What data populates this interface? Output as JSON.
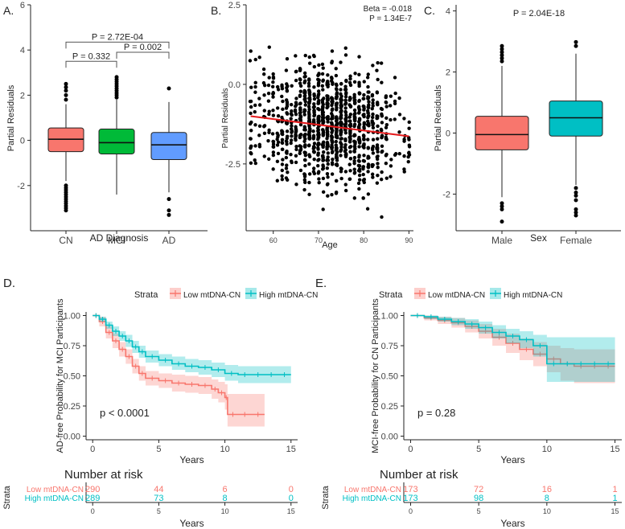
{
  "colors": {
    "red": "#f8766d",
    "green": "#00ba38",
    "blue": "#619cff",
    "teal": "#00bfc4",
    "line": "#e41a1c",
    "axis": "#222222",
    "tick": "#444444"
  },
  "chart_data": [
    {
      "panel_label": "A.",
      "type": "box",
      "xlabel": "AD Diagnosis",
      "ylabel": "Partial Residuals",
      "ylim": [
        -4,
        6
      ],
      "yticks": [
        "-2",
        "0",
        "2",
        "4",
        "6"
      ],
      "categories": [
        "CN",
        "MCI",
        "AD"
      ],
      "boxes": [
        {
          "name": "CN",
          "q1": -0.5,
          "median": 0.05,
          "q3": 0.55,
          "whisker_low": -1.8,
          "whisker_high": 1.6,
          "outliers": [
            -2.0,
            -2.1,
            -2.2,
            -2.3,
            -2.4,
            -2.5,
            -2.6,
            -2.7,
            -2.8,
            -2.9,
            -3.0,
            -3.1,
            1.8,
            2.0,
            2.2,
            2.35,
            2.5
          ],
          "color_key": "red"
        },
        {
          "name": "MCI",
          "q1": -0.6,
          "median": -0.1,
          "q3": 0.5,
          "whisker_low": -2.4,
          "whisker_high": 1.8,
          "outliers": [
            1.9,
            2.0,
            2.1,
            2.2,
            2.3,
            2.4,
            2.5,
            2.6,
            2.7,
            2.8
          ],
          "color_key": "green"
        },
        {
          "name": "AD",
          "q1": -0.85,
          "median": -0.2,
          "q3": 0.35,
          "whisker_low": -2.3,
          "whisker_high": 1.7,
          "outliers": [
            2.3,
            -2.6,
            -3.1,
            -3.3
          ],
          "color_key": "blue"
        }
      ],
      "brackets": [
        {
          "from": "CN",
          "to": "AD",
          "label": "P = 2.72E-04",
          "y": 4.35
        },
        {
          "from": "CN",
          "to": "MCI",
          "label": "P = 0.332",
          "y": 3.5
        },
        {
          "from": "MCI",
          "to": "AD",
          "label": "P = 0.002",
          "y": 3.9
        }
      ]
    },
    {
      "panel_label": "B.",
      "type": "scatter",
      "xlabel": "Age",
      "ylabel": "Partial Residuals",
      "xlim": [
        54,
        91
      ],
      "ylim": [
        -4.6,
        2.5
      ],
      "xticks": [
        "60",
        "70",
        "80",
        "90"
      ],
      "yticks": [
        "2.5",
        "0.0",
        "-2.5"
      ],
      "annotation_beta": "Beta = -0.018",
      "annotation_p": "P = 1.34E-7",
      "n_points": 1100,
      "x_range": [
        55,
        90
      ],
      "y_mean": -1.3,
      "y_sd": 0.95,
      "fit_line": {
        "x": [
          55,
          90
        ],
        "y": [
          -1.0,
          -1.63
        ]
      }
    },
    {
      "panel_label": "C.",
      "type": "box",
      "xlabel": "Sex",
      "ylabel": "Partial Residuals",
      "ylim": [
        -3.2,
        4.2
      ],
      "yticks": [
        "-2",
        "0",
        "2",
        "4"
      ],
      "categories": [
        "Male",
        "Female"
      ],
      "annotation": "P = 2.04E-18",
      "boxes": [
        {
          "name": "Male",
          "q1": -0.55,
          "median": -0.05,
          "q3": 0.55,
          "whisker_low": -2.1,
          "whisker_high": 2.2,
          "outliers": [
            2.35,
            2.45,
            2.55,
            2.65,
            2.75,
            2.85,
            -2.3,
            -2.4,
            -2.5,
            -2.9
          ],
          "color_key": "red"
        },
        {
          "name": "Female",
          "q1": -0.1,
          "median": 0.5,
          "q3": 1.05,
          "whisker_low": -1.7,
          "whisker_high": 2.6,
          "outliers": [
            2.85,
            2.98,
            -1.8,
            -1.95,
            -2.05,
            -2.2,
            -2.5,
            -2.6,
            -2.7
          ],
          "color_key": "teal"
        }
      ]
    },
    {
      "panel_label": "D.",
      "type": "line",
      "legend_title": "Strata",
      "legend_items": [
        "Low mtDNA-CN",
        "High mtDNA-CN"
      ],
      "ylabel": "AD-free Probability for MCI Participants",
      "xlabel": "Years",
      "xlim": [
        -0.5,
        15.5
      ],
      "ylim": [
        -0.03,
        1.03
      ],
      "xticks": [
        "0",
        "5",
        "10",
        "15"
      ],
      "yticks": [
        "0.00",
        "0.25",
        "0.50",
        "0.75",
        "1.00"
      ],
      "pvalue": "p < 0.0001",
      "series": [
        {
          "name": "Low mtDNA-CN",
          "color_key": "red",
          "x": [
            0,
            0.5,
            1,
            1.5,
            2,
            2.5,
            3,
            3.5,
            4,
            5,
            6,
            7,
            8,
            9,
            9.5,
            10,
            10.2,
            11,
            12,
            13
          ],
          "y": [
            1.0,
            0.95,
            0.86,
            0.79,
            0.72,
            0.66,
            0.58,
            0.52,
            0.48,
            0.46,
            0.44,
            0.43,
            0.42,
            0.39,
            0.36,
            0.32,
            0.18,
            0.18,
            0.18,
            0.18
          ],
          "lower": [
            1.0,
            0.91,
            0.81,
            0.73,
            0.66,
            0.6,
            0.52,
            0.46,
            0.42,
            0.4,
            0.37,
            0.36,
            0.35,
            0.31,
            0.28,
            0.22,
            0.08,
            0.08,
            0.08,
            0.08
          ],
          "upper": [
            1.0,
            0.99,
            0.91,
            0.85,
            0.78,
            0.72,
            0.64,
            0.58,
            0.54,
            0.52,
            0.51,
            0.5,
            0.49,
            0.47,
            0.45,
            0.43,
            0.35,
            0.35,
            0.35,
            0.35
          ]
        },
        {
          "name": "High mtDNA-CN",
          "color_key": "teal",
          "x": [
            0,
            0.5,
            1,
            1.5,
            2,
            2.5,
            3,
            3.5,
            4,
            5,
            6,
            7,
            8,
            9,
            10,
            11,
            12,
            13,
            14,
            15
          ],
          "y": [
            1.0,
            0.97,
            0.92,
            0.87,
            0.83,
            0.79,
            0.74,
            0.7,
            0.66,
            0.63,
            0.6,
            0.58,
            0.57,
            0.55,
            0.52,
            0.51,
            0.51,
            0.51,
            0.51,
            0.51
          ],
          "lower": [
            1.0,
            0.95,
            0.89,
            0.83,
            0.79,
            0.74,
            0.69,
            0.65,
            0.61,
            0.58,
            0.55,
            0.53,
            0.51,
            0.49,
            0.46,
            0.44,
            0.44,
            0.44,
            0.44,
            0.44
          ],
          "upper": [
            1.0,
            0.99,
            0.95,
            0.91,
            0.87,
            0.84,
            0.79,
            0.75,
            0.71,
            0.68,
            0.66,
            0.64,
            0.63,
            0.61,
            0.59,
            0.58,
            0.58,
            0.58,
            0.58,
            0.58
          ]
        }
      ],
      "risk_table": {
        "title": "Number at risk",
        "ylabel": "Strata",
        "xlabel": "Years",
        "rows": [
          {
            "name": "Low mtDNA-CN",
            "color_key": "red",
            "values": [
              "290",
              "44",
              "6",
              "0"
            ]
          },
          {
            "name": "High mtDNA-CN",
            "color_key": "teal",
            "values": [
              "289",
              "73",
              "8",
              "0"
            ]
          }
        ]
      }
    },
    {
      "panel_label": "E.",
      "type": "line",
      "legend_title": "Strata",
      "legend_items": [
        "Low mtDNA-CN",
        "High mtDNA-CN"
      ],
      "ylabel": "MCI-free Probability for CN Participants",
      "xlabel": "Years",
      "xlim": [
        -0.5,
        15.5
      ],
      "ylim": [
        -0.03,
        1.03
      ],
      "xticks": [
        "0",
        "5",
        "10",
        "15"
      ],
      "yticks": [
        "0.00",
        "0.25",
        "0.50",
        "0.75",
        "1.00"
      ],
      "pvalue": "p = 0.28",
      "series": [
        {
          "name": "Low mtDNA-CN",
          "color_key": "red",
          "x": [
            0,
            1,
            2,
            3,
            4,
            5,
            6,
            7,
            8,
            9,
            10,
            11,
            12,
            13,
            14,
            15
          ],
          "y": [
            1.0,
            0.98,
            0.96,
            0.94,
            0.91,
            0.87,
            0.82,
            0.77,
            0.72,
            0.68,
            0.64,
            0.6,
            0.58,
            0.58,
            0.58,
            0.58
          ],
          "lower": [
            1.0,
            0.96,
            0.93,
            0.9,
            0.86,
            0.81,
            0.75,
            0.69,
            0.63,
            0.58,
            0.53,
            0.46,
            0.44,
            0.44,
            0.44,
            0.44
          ],
          "upper": [
            1.0,
            1.0,
            0.99,
            0.98,
            0.96,
            0.93,
            0.89,
            0.85,
            0.81,
            0.78,
            0.75,
            0.73,
            0.72,
            0.72,
            0.72,
            0.72
          ]
        },
        {
          "name": "High mtDNA-CN",
          "color_key": "teal",
          "x": [
            0,
            1,
            2,
            3,
            4,
            5,
            6,
            7,
            8,
            9,
            10,
            11,
            12,
            13,
            14,
            15
          ],
          "y": [
            1.0,
            0.99,
            0.97,
            0.95,
            0.93,
            0.9,
            0.86,
            0.83,
            0.8,
            0.75,
            0.6,
            0.6,
            0.6,
            0.6,
            0.6,
            0.6
          ],
          "lower": [
            1.0,
            0.97,
            0.95,
            0.92,
            0.89,
            0.85,
            0.81,
            0.77,
            0.73,
            0.66,
            0.45,
            0.45,
            0.45,
            0.45,
            0.45,
            0.45
          ],
          "upper": [
            1.0,
            1.0,
            0.99,
            0.98,
            0.97,
            0.95,
            0.92,
            0.89,
            0.87,
            0.84,
            0.82,
            0.82,
            0.82,
            0.82,
            0.82,
            0.82
          ]
        }
      ],
      "risk_table": {
        "title": "Number at risk",
        "ylabel": "Strata",
        "xlabel": "Years",
        "rows": [
          {
            "name": "Low mtDNA-CN",
            "color_key": "red",
            "values": [
              "173",
              "72",
              "16",
              "1"
            ]
          },
          {
            "name": "High mtDNA-CN",
            "color_key": "teal",
            "values": [
              "173",
              "98",
              "8",
              "1"
            ]
          }
        ]
      }
    }
  ]
}
